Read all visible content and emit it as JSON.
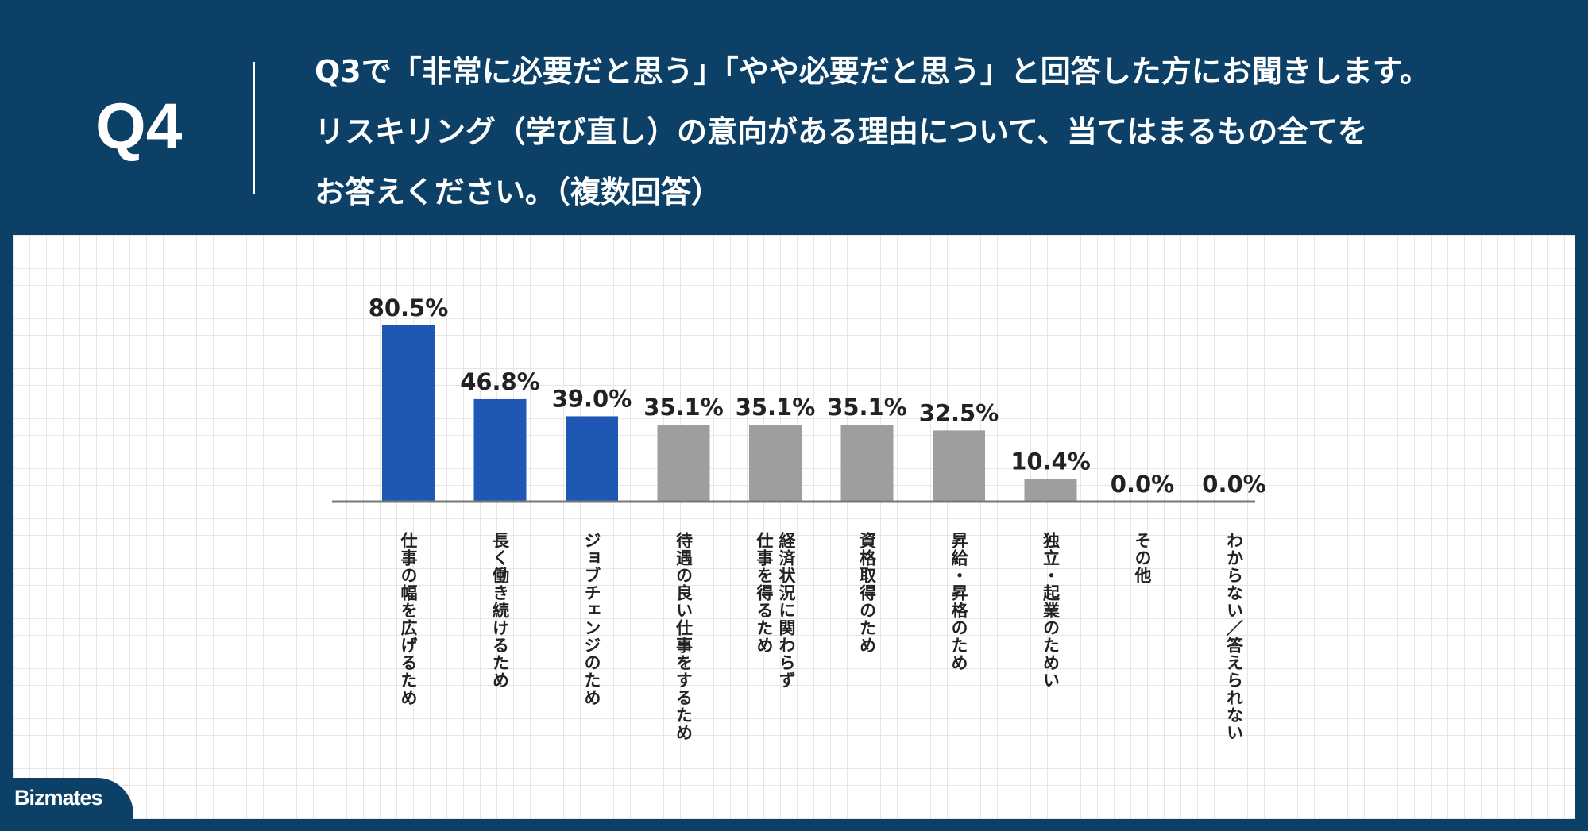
{
  "header": {
    "question_number": "Q4",
    "question_lines": [
      "Q3で「非常に必要だと思う」「やや必要だと思う」と回答した方にお聞きします。",
      "リスキリング（学び直し）の意向がある理由について、当てはまるもの全てを",
      "お答えください。（複数回答）"
    ]
  },
  "brand": {
    "logo_text": "Bizmates"
  },
  "colors": {
    "header_bg": "#0d4066",
    "highlight_bar": "#1f57b5",
    "normal_bar": "#9e9e9e",
    "axis": "#777777",
    "text": "#222222"
  },
  "chart_data": {
    "type": "bar",
    "title": "",
    "xlabel": "",
    "ylabel": "",
    "ylim": [
      0,
      100
    ],
    "grid": true,
    "categories": [
      "仕事の幅を広げるため",
      "長く働き続けるため",
      "ジョブチェンジのため",
      "待遇の良い仕事をするため",
      [
        "経済状況に関わらず",
        "仕事を得るため"
      ],
      "資格取得のため",
      "昇給・昇格のため",
      "独立・起業のためい",
      "その他",
      "わからない／答えられない"
    ],
    "values": [
      80.5,
      46.8,
      39.0,
      35.1,
      35.1,
      35.1,
      32.5,
      10.4,
      0.0,
      0.0
    ],
    "value_labels": [
      "80.5%",
      "46.8%",
      "39.0%",
      "35.1%",
      "35.1%",
      "35.1%",
      "32.5%",
      "10.4%",
      "0.0%",
      "0.0%"
    ],
    "highlighted": [
      true,
      true,
      true,
      false,
      false,
      false,
      false,
      false,
      false,
      false
    ]
  }
}
